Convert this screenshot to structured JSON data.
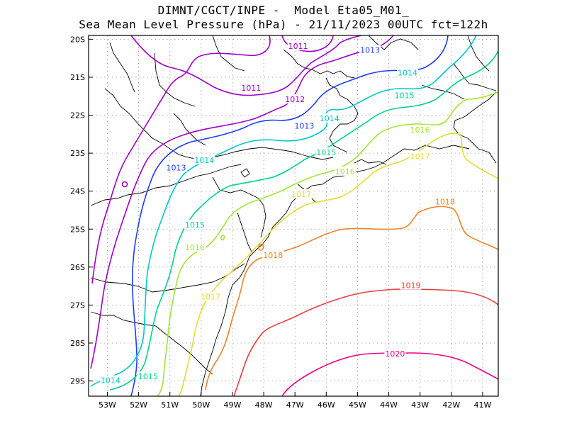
{
  "title": {
    "line1": "DIMNT/CGCT/INPE -  Model Eta05_M01_",
    "line2": "Sea Mean Level Pressure (hPa) - 21/11/2023 00UTC fct=122h"
  },
  "axes": {
    "lon_ticks": [
      "53W",
      "52W",
      "51W",
      "50W",
      "49W",
      "48W",
      "47W",
      "46W",
      "45W",
      "44W",
      "43W",
      "42W",
      "41W"
    ],
    "lat_ticks": [
      "20S",
      "21S",
      "22S",
      "23S",
      "24S",
      "25S",
      "26S",
      "27S",
      "28S",
      "29S"
    ],
    "lon_range": [
      -53.6,
      -40.5
    ],
    "lat_range": [
      -29.4,
      -19.9
    ],
    "grid": "dotted"
  },
  "contour_colors": {
    "1011": "#a000c8",
    "1012": "#a000c8",
    "1013": "#1e3cff",
    "1014": "#00c8c8",
    "1015": "#00d28c",
    "1016": "#a0e632",
    "1017": "#e6dc32",
    "1018": "#f08228",
    "1019": "#f03c3c",
    "1020": "#f00082"
  },
  "contour_labels": [
    {
      "text": "1011",
      "lon": -46.9,
      "lat": -20.2,
      "level": "1011"
    },
    {
      "text": "1011",
      "lon": -48.4,
      "lat": -21.3,
      "level": "1011"
    },
    {
      "text": "1012",
      "lon": -47.0,
      "lat": -21.6,
      "level": "1012"
    },
    {
      "text": "1013",
      "lon": -44.6,
      "lat": -20.3,
      "level": "1013"
    },
    {
      "text": "1013",
      "lon": -46.7,
      "lat": -22.3,
      "level": "1013"
    },
    {
      "text": "1013",
      "lon": -50.8,
      "lat": -23.4,
      "level": "1013"
    },
    {
      "text": "1014",
      "lon": -43.4,
      "lat": -20.9,
      "level": "1014"
    },
    {
      "text": "1014",
      "lon": -45.9,
      "lat": -22.1,
      "level": "1014"
    },
    {
      "text": "1014",
      "lon": -49.9,
      "lat": -23.2,
      "level": "1014"
    },
    {
      "text": "1014",
      "lon": -52.9,
      "lat": -29.0,
      "level": "1014"
    },
    {
      "text": "1015",
      "lon": -43.5,
      "lat": -21.5,
      "level": "1015"
    },
    {
      "text": "1015",
      "lon": -46.0,
      "lat": -23.0,
      "level": "1015"
    },
    {
      "text": "1015",
      "lon": -50.2,
      "lat": -24.9,
      "level": "1015"
    },
    {
      "text": "1015",
      "lon": -51.7,
      "lat": -28.9,
      "level": "1015"
    },
    {
      "text": "1016",
      "lon": -43.0,
      "lat": -22.4,
      "level": "1016"
    },
    {
      "text": "1016",
      "lon": -45.4,
      "lat": -23.5,
      "level": "1016"
    },
    {
      "text": "1016",
      "lon": -50.2,
      "lat": -25.5,
      "level": "1016"
    },
    {
      "text": "1017",
      "lon": -43.0,
      "lat": -23.1,
      "level": "1017"
    },
    {
      "text": "1017",
      "lon": -46.8,
      "lat": -24.1,
      "level": "1017"
    },
    {
      "text": "1017",
      "lon": -49.7,
      "lat": -26.8,
      "level": "1017"
    },
    {
      "text": "1018",
      "lon": -42.2,
      "lat": -24.3,
      "level": "1018"
    },
    {
      "text": "1018",
      "lon": -47.7,
      "lat": -25.7,
      "level": "1018"
    },
    {
      "text": "1019",
      "lon": -43.3,
      "lat": -26.5,
      "level": "1019"
    },
    {
      "text": "1020",
      "lon": -43.8,
      "lat": -28.3,
      "level": "1020"
    }
  ]
}
